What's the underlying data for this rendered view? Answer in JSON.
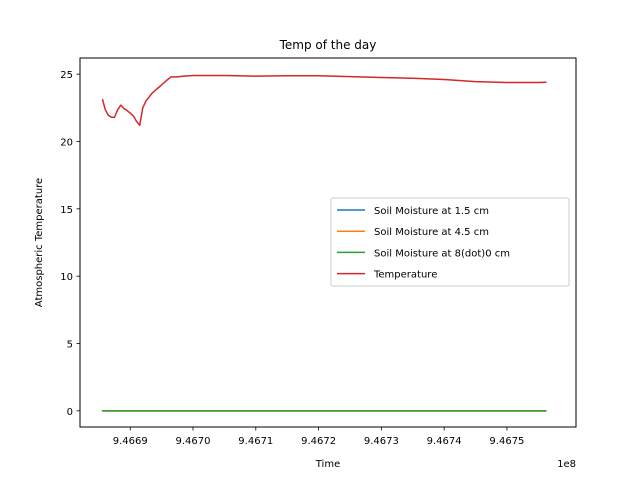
{
  "chart_data": {
    "type": "line",
    "title": "Temp of the day",
    "xlabel": "Time",
    "ylabel": "Atmospheric Temperature",
    "x_offset_label": "1e8",
    "x_tick_labels": [
      "9.4669",
      "9.4670",
      "9.4671",
      "9.4672",
      "9.4673",
      "9.4674",
      "9.4675"
    ],
    "y_tick_labels": [
      "0",
      "5",
      "10",
      "15",
      "20",
      "25"
    ],
    "xlim": [
      9.46682,
      9.46761
    ],
    "ylim": [
      -1.2,
      26.2
    ],
    "grid": false,
    "legend_position": "center-right",
    "series": [
      {
        "name": "Soil Moisture at 1.5 cm",
        "color": "#1f77b4",
        "x": [
          9.466856,
          9.466905,
          9.467,
          9.4671,
          9.4672,
          9.4673,
          9.4674,
          9.4675,
          9.467562
        ],
        "y": [
          0.0,
          0.0,
          0.0,
          0.0,
          0.0,
          0.0,
          0.0,
          0.0,
          0.0
        ]
      },
      {
        "name": "Soil Moisture at 4.5 cm",
        "color": "#ff7f0e",
        "x": [
          9.466856,
          9.466905,
          9.467,
          9.4671,
          9.4672,
          9.4673,
          9.4674,
          9.4675,
          9.467562
        ],
        "y": [
          0.0,
          0.0,
          0.0,
          0.0,
          0.0,
          0.0,
          0.0,
          0.0,
          0.0
        ]
      },
      {
        "name": "Soil Moisture at 8(dot)0 cm",
        "color": "#2ca02c",
        "x": [
          9.466856,
          9.466905,
          9.467,
          9.4671,
          9.4672,
          9.4673,
          9.4674,
          9.4675,
          9.467562
        ],
        "y": [
          0.0,
          0.0,
          0.0,
          0.0,
          0.0,
          0.0,
          0.0,
          0.0,
          0.0
        ]
      },
      {
        "name": "Temperature",
        "color": "#d62728",
        "x": [
          9.466856,
          9.46686,
          9.466865,
          9.46687,
          9.466875,
          9.46688,
          9.466885,
          9.46689,
          9.466895,
          9.4669,
          9.466905,
          9.46691,
          9.466915,
          9.46692,
          9.466925,
          9.46693,
          9.466935,
          9.46694,
          9.466945,
          9.46695,
          9.466957,
          9.466965,
          9.466975,
          9.466985,
          9.466995,
          9.467,
          9.46705,
          9.4671,
          9.46715,
          9.4672,
          9.46725,
          9.4673,
          9.46735,
          9.4674,
          9.46745,
          9.4675,
          9.46755,
          9.467562
        ],
        "y": [
          23.1,
          22.4,
          21.95,
          21.8,
          21.8,
          22.35,
          22.7,
          22.45,
          22.3,
          22.1,
          21.9,
          21.5,
          21.2,
          22.5,
          23.0,
          23.3,
          23.6,
          23.8,
          24.0,
          24.2,
          24.5,
          24.8,
          24.8,
          24.85,
          24.88,
          24.9,
          24.9,
          24.85,
          24.88,
          24.88,
          24.82,
          24.75,
          24.7,
          24.6,
          24.45,
          24.38,
          24.38,
          24.4
        ]
      }
    ]
  }
}
